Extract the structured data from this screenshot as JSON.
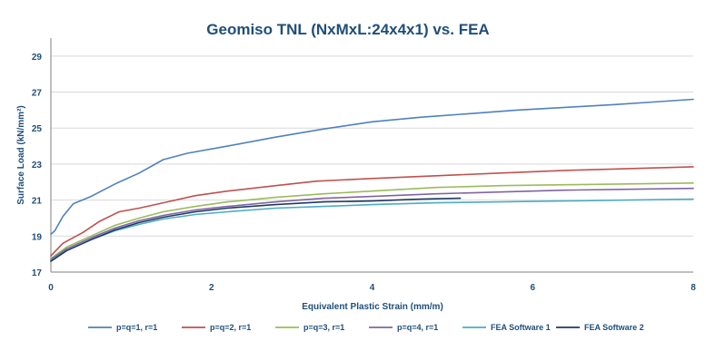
{
  "chart_data": {
    "type": "line",
    "title": "Geomiso TNL (NxMxL:24x4x1) vs. FEA",
    "xlabel": "Equivalent Plastic Strain (mm/m)",
    "ylabel": "Surface Load (kN/mm²)",
    "xlim": [
      0,
      8
    ],
    "ylim": [
      17,
      30
    ],
    "xticks": [
      "0",
      "2",
      "4",
      "6",
      "8"
    ],
    "yticks": [
      "17",
      "19",
      "21",
      "23",
      "25",
      "27",
      "29"
    ],
    "x_tick_values": [
      0,
      2,
      4,
      6,
      8
    ],
    "y_tick_values": [
      17,
      19,
      21,
      23,
      25,
      27,
      29
    ],
    "grid": "y-major",
    "legend_position": "bottom",
    "series": [
      {
        "name": "p=q=1, r=1",
        "color": "#4f81bd",
        "points": [
          [
            0,
            19.1
          ],
          [
            0.05,
            19.3
          ],
          [
            0.15,
            20.1
          ],
          [
            0.28,
            20.8
          ],
          [
            0.5,
            21.2
          ],
          [
            0.8,
            21.9
          ],
          [
            1.1,
            22.5
          ],
          [
            1.4,
            23.25
          ],
          [
            1.7,
            23.6
          ],
          [
            2.2,
            24.0
          ],
          [
            2.8,
            24.5
          ],
          [
            3.4,
            24.95
          ],
          [
            4.0,
            25.35
          ],
          [
            4.6,
            25.6
          ],
          [
            5.2,
            25.8
          ],
          [
            5.8,
            26.0
          ],
          [
            6.4,
            26.15
          ],
          [
            7.0,
            26.3
          ],
          [
            7.5,
            26.45
          ],
          [
            8.0,
            26.6
          ]
        ]
      },
      {
        "name": "p=q=2, r=1",
        "color": "#c0504d",
        "points": [
          [
            0,
            17.9
          ],
          [
            0.15,
            18.6
          ],
          [
            0.4,
            19.2
          ],
          [
            0.6,
            19.8
          ],
          [
            0.85,
            20.35
          ],
          [
            1.1,
            20.55
          ],
          [
            1.4,
            20.85
          ],
          [
            1.8,
            21.25
          ],
          [
            2.2,
            21.5
          ],
          [
            2.8,
            21.8
          ],
          [
            3.3,
            22.05
          ],
          [
            4.0,
            22.2
          ],
          [
            4.8,
            22.35
          ],
          [
            5.6,
            22.5
          ],
          [
            6.4,
            22.65
          ],
          [
            7.2,
            22.75
          ],
          [
            8.0,
            22.85
          ]
        ]
      },
      {
        "name": "p=q=3, r=1",
        "color": "#9bbb59",
        "points": [
          [
            0,
            17.75
          ],
          [
            0.2,
            18.4
          ],
          [
            0.5,
            19.0
          ],
          [
            0.8,
            19.6
          ],
          [
            1.1,
            20.0
          ],
          [
            1.4,
            20.35
          ],
          [
            1.8,
            20.65
          ],
          [
            2.2,
            20.9
          ],
          [
            2.8,
            21.15
          ],
          [
            3.4,
            21.35
          ],
          [
            4.0,
            21.5
          ],
          [
            4.8,
            21.7
          ],
          [
            5.6,
            21.8
          ],
          [
            6.4,
            21.85
          ],
          [
            7.2,
            21.9
          ],
          [
            8.0,
            21.95
          ]
        ]
      },
      {
        "name": "p=q=4, r=1",
        "color": "#8064a2",
        "points": [
          [
            0,
            17.7
          ],
          [
            0.2,
            18.3
          ],
          [
            0.5,
            18.9
          ],
          [
            0.8,
            19.45
          ],
          [
            1.1,
            19.85
          ],
          [
            1.4,
            20.15
          ],
          [
            1.8,
            20.45
          ],
          [
            2.2,
            20.65
          ],
          [
            2.8,
            20.9
          ],
          [
            3.4,
            21.1
          ],
          [
            4.0,
            21.2
          ],
          [
            4.8,
            21.35
          ],
          [
            5.6,
            21.45
          ],
          [
            6.4,
            21.55
          ],
          [
            7.2,
            21.6
          ],
          [
            8.0,
            21.65
          ]
        ]
      },
      {
        "name": "FEA Software 1",
        "color": "#4bacc6",
        "points": [
          [
            0,
            17.65
          ],
          [
            0.2,
            18.2
          ],
          [
            0.5,
            18.8
          ],
          [
            0.8,
            19.3
          ],
          [
            1.1,
            19.65
          ],
          [
            1.4,
            19.95
          ],
          [
            1.8,
            20.2
          ],
          [
            2.2,
            20.35
          ],
          [
            2.8,
            20.55
          ],
          [
            3.4,
            20.65
          ],
          [
            4.0,
            20.75
          ],
          [
            4.8,
            20.85
          ],
          [
            5.6,
            20.9
          ],
          [
            6.4,
            20.95
          ],
          [
            7.2,
            21.0
          ],
          [
            8.0,
            21.05
          ]
        ]
      },
      {
        "name": "FEA Software 2",
        "color": "#1f3864",
        "points": [
          [
            0,
            17.6
          ],
          [
            0.2,
            18.2
          ],
          [
            0.5,
            18.8
          ],
          [
            0.8,
            19.35
          ],
          [
            1.1,
            19.75
          ],
          [
            1.4,
            20.05
          ],
          [
            1.8,
            20.35
          ],
          [
            2.2,
            20.55
          ],
          [
            2.8,
            20.75
          ],
          [
            3.4,
            20.9
          ],
          [
            4.0,
            20.95
          ],
          [
            4.6,
            21.05
          ],
          [
            5.1,
            21.1
          ]
        ]
      }
    ]
  }
}
